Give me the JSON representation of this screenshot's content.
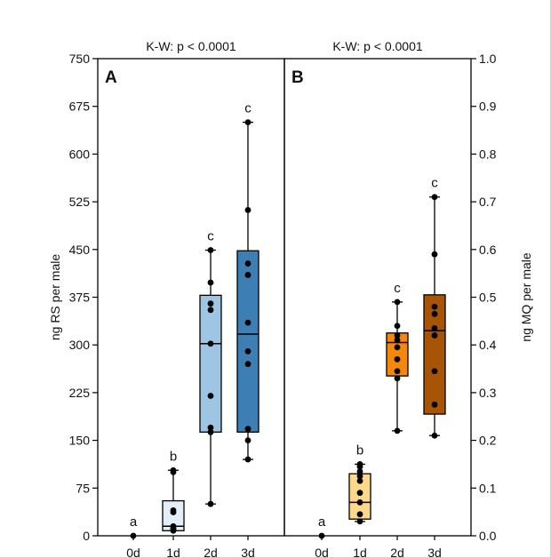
{
  "chart_data": [
    {
      "panel": "A",
      "type": "box",
      "title": "K-W: p < 0.0001",
      "ylabel": "ng RS per male",
      "ylim": [
        0,
        750
      ],
      "yticks": [
        "0",
        "75",
        "150",
        "225",
        "300",
        "375",
        "450",
        "525",
        "600",
        "675",
        "750"
      ],
      "categories": [
        "0d",
        "1d",
        "2d",
        "3d"
      ],
      "letters": [
        "a",
        "b",
        "c",
        "c"
      ],
      "colors": [
        "#ffffff",
        "#e3eff8",
        "#9ec5e3",
        "#3d7fb5"
      ],
      "boxes": [
        null,
        {
          "min": 8,
          "q1": 8,
          "median": 15,
          "q3": 55,
          "max": 103
        },
        {
          "min": 50,
          "q1": 163,
          "median": 302,
          "q3": 378,
          "max": 449
        },
        {
          "min": 120,
          "q1": 163,
          "median": 317,
          "q3": 448,
          "max": 650
        }
      ],
      "points": [
        [
          0
        ],
        [
          8,
          10,
          12,
          15,
          37,
          40,
          100,
          103
        ],
        [
          50,
          163,
          170,
          220,
          302,
          355,
          365,
          398,
          449
        ],
        [
          120,
          150,
          168,
          270,
          290,
          335,
          410,
          428,
          512,
          650
        ]
      ]
    },
    {
      "panel": "B",
      "type": "box",
      "title": "K-W: p < 0.0001",
      "ylabel": "ng MQ per male",
      "ylim": [
        0,
        1.0
      ],
      "yticks": [
        "0.0",
        "0.1",
        "0.2",
        "0.3",
        "0.4",
        "0.5",
        "0.6",
        "0.7",
        "0.8",
        "0.9",
        "1.0"
      ],
      "categories": [
        "0d",
        "1d",
        "2d",
        "3d"
      ],
      "letters": [
        "a",
        "b",
        "c",
        "c"
      ],
      "colors": [
        "#ffffff",
        "#fcd98a",
        "#f5870f",
        "#a85406"
      ],
      "boxes": [
        null,
        {
          "min": 0.03,
          "q1": 0.035,
          "median": 0.07,
          "q3": 0.13,
          "max": 0.15
        },
        {
          "min": 0.22,
          "q1": 0.335,
          "median": 0.405,
          "q3": 0.425,
          "max": 0.49
        },
        {
          "min": 0.21,
          "q1": 0.255,
          "median": 0.43,
          "q3": 0.505,
          "max": 0.71
        }
      ],
      "points": [
        [
          0
        ],
        [
          0.03,
          0.045,
          0.07,
          0.09,
          0.115,
          0.125,
          0.135,
          0.145,
          0.15
        ],
        [
          0.22,
          0.33,
          0.345,
          0.37,
          0.395,
          0.41,
          0.42,
          0.44,
          0.49
        ],
        [
          0.21,
          0.275,
          0.345,
          0.42,
          0.435,
          0.465,
          0.48,
          0.59,
          0.71
        ]
      ]
    }
  ]
}
